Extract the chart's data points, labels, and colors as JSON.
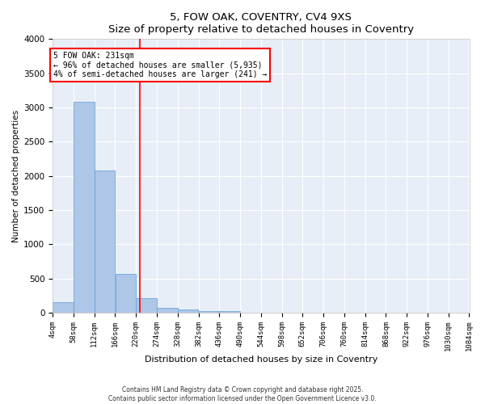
{
  "title": "5, FOW OAK, COVENTRY, CV4 9XS",
  "subtitle": "Size of property relative to detached houses in Coventry",
  "xlabel": "Distribution of detached houses by size in Coventry",
  "ylabel": "Number of detached properties",
  "bin_edges": [
    4,
    58,
    112,
    166,
    220,
    274,
    328,
    382,
    436,
    490,
    544,
    598,
    652,
    706,
    760,
    814,
    868,
    922,
    976,
    1030,
    1084
  ],
  "bar_heights": [
    150,
    3080,
    2080,
    570,
    210,
    75,
    50,
    20,
    20,
    0,
    0,
    0,
    0,
    0,
    0,
    0,
    0,
    0,
    0,
    0
  ],
  "bar_color": "#aec6e8",
  "bar_edgecolor": "#5a9fd4",
  "vline_x": 231,
  "vline_color": "red",
  "annotation_text": "5 FOW OAK: 231sqm\n← 96% of detached houses are smaller (5,935)\n4% of semi-detached houses are larger (241) →",
  "annotation_box_color": "white",
  "annotation_box_edgecolor": "red",
  "ylim": [
    0,
    4000
  ],
  "background_color": "#e8eef7",
  "footer_line1": "Contains HM Land Registry data © Crown copyright and database right 2025.",
  "footer_line2": "Contains public sector information licensed under the Open Government Licence v3.0."
}
